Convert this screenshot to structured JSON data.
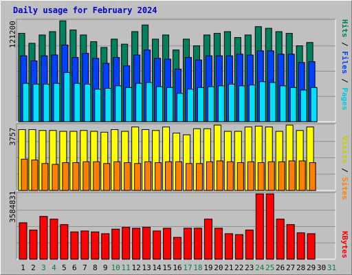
{
  "title": "Daily usage for February 2024",
  "colors": {
    "hits": "#00805c",
    "files": "#0040ff",
    "pages": "#00e0ff",
    "visits": "#ffff00",
    "sites": "#ff8000",
    "kbytes": "#ff0000",
    "weekend": "#008040",
    "weekday": "#000000",
    "title": "#0000cc"
  },
  "legend_top": {
    "pages": "Pages",
    "files": "Files",
    "hits": "Hits",
    "sep": " / "
  },
  "legend_mid": {
    "sites": "Sites",
    "visits": "Visits",
    "sep": " / "
  },
  "legend_bot": {
    "kbytes": "KBytes"
  },
  "chart_data": [
    {
      "type": "bar",
      "panel": "hits-files-pages",
      "ymax_label": "121200",
      "ylim": [
        0,
        121200
      ],
      "x": [
        "1",
        "2",
        "3",
        "4",
        "5",
        "6",
        "7",
        "8",
        "9",
        "10",
        "11",
        "12",
        "13",
        "14",
        "15",
        "16",
        "17",
        "18",
        "19",
        "20",
        "21",
        "22",
        "23",
        "24",
        "25",
        "26",
        "27",
        "28",
        "29",
        "30",
        "31"
      ],
      "series": [
        {
          "name": "Hits",
          "values": [
            106000,
            94000,
            104000,
            108000,
            121000,
            110000,
            104000,
            96000,
            89000,
            99000,
            93000,
            108000,
            116000,
            99000,
            104000,
            86000,
            99000,
            91000,
            104000,
            106000,
            108000,
            101000,
            104000,
            114000,
            112000,
            108000,
            106000,
            91000,
            95000,
            0,
            0
          ]
        },
        {
          "name": "Files",
          "values": [
            79000,
            73000,
            79000,
            80000,
            92000,
            77000,
            82000,
            76000,
            70000,
            77000,
            67000,
            80000,
            86000,
            76000,
            75000,
            63000,
            77000,
            74000,
            79000,
            79000,
            79000,
            81000,
            80000,
            85000,
            85000,
            81000,
            81000,
            71000,
            72000,
            0,
            0
          ]
        },
        {
          "name": "Pages",
          "values": [
            46000,
            45000,
            45000,
            46000,
            59000,
            46000,
            45000,
            39000,
            40000,
            43000,
            41000,
            46000,
            47000,
            42000,
            41000,
            34000,
            39000,
            41000,
            42000,
            43000,
            45000,
            43000,
            44000,
            48000,
            47000,
            43000,
            41000,
            38000,
            41000,
            0,
            0
          ]
        }
      ]
    },
    {
      "type": "bar",
      "panel": "visits-sites",
      "ymax_label": "3757",
      "ylim": [
        0,
        3757
      ],
      "x": [
        "1",
        "2",
        "3",
        "4",
        "5",
        "6",
        "7",
        "8",
        "9",
        "10",
        "11",
        "12",
        "13",
        "14",
        "15",
        "16",
        "17",
        "18",
        "19",
        "20",
        "21",
        "22",
        "23",
        "24",
        "25",
        "26",
        "27",
        "28",
        "29",
        "30",
        "31"
      ],
      "series": [
        {
          "name": "Visits",
          "values": [
            3500,
            3500,
            3450,
            3450,
            3400,
            3400,
            3450,
            3400,
            3350,
            3500,
            3400,
            3650,
            3500,
            3450,
            3650,
            3300,
            3200,
            3550,
            3550,
            3757,
            3400,
            3400,
            3650,
            3700,
            3650,
            3400,
            3757,
            3450,
            3650,
            0,
            0
          ]
        },
        {
          "name": "Sites",
          "values": [
            1800,
            1750,
            1550,
            1500,
            1600,
            1600,
            1650,
            1650,
            1550,
            1650,
            1600,
            1550,
            1650,
            1600,
            1650,
            1650,
            1550,
            1550,
            1650,
            1700,
            1650,
            1600,
            1650,
            1600,
            1650,
            1650,
            1700,
            1700,
            1600,
            0,
            0
          ]
        }
      ]
    },
    {
      "type": "bar",
      "panel": "kbytes",
      "ymax_label": "3584831",
      "ylim": [
        0,
        3584831
      ],
      "x": [
        "1",
        "2",
        "3",
        "4",
        "5",
        "6",
        "7",
        "8",
        "9",
        "10",
        "11",
        "12",
        "13",
        "14",
        "15",
        "16",
        "17",
        "18",
        "19",
        "20",
        "21",
        "22",
        "23",
        "24",
        "25",
        "26",
        "27",
        "28",
        "29",
        "30",
        "31"
      ],
      "series": [
        {
          "name": "KBytes",
          "values": [
            2000000,
            1600000,
            2350000,
            2200000,
            1900000,
            1500000,
            1550000,
            1500000,
            1400000,
            1650000,
            1750000,
            1700000,
            1750000,
            1550000,
            1700000,
            1200000,
            1700000,
            1700000,
            2200000,
            1700000,
            1400000,
            1350000,
            1600000,
            3584831,
            3584831,
            2200000,
            1900000,
            1450000,
            1400000,
            0,
            0
          ]
        }
      ]
    }
  ]
}
